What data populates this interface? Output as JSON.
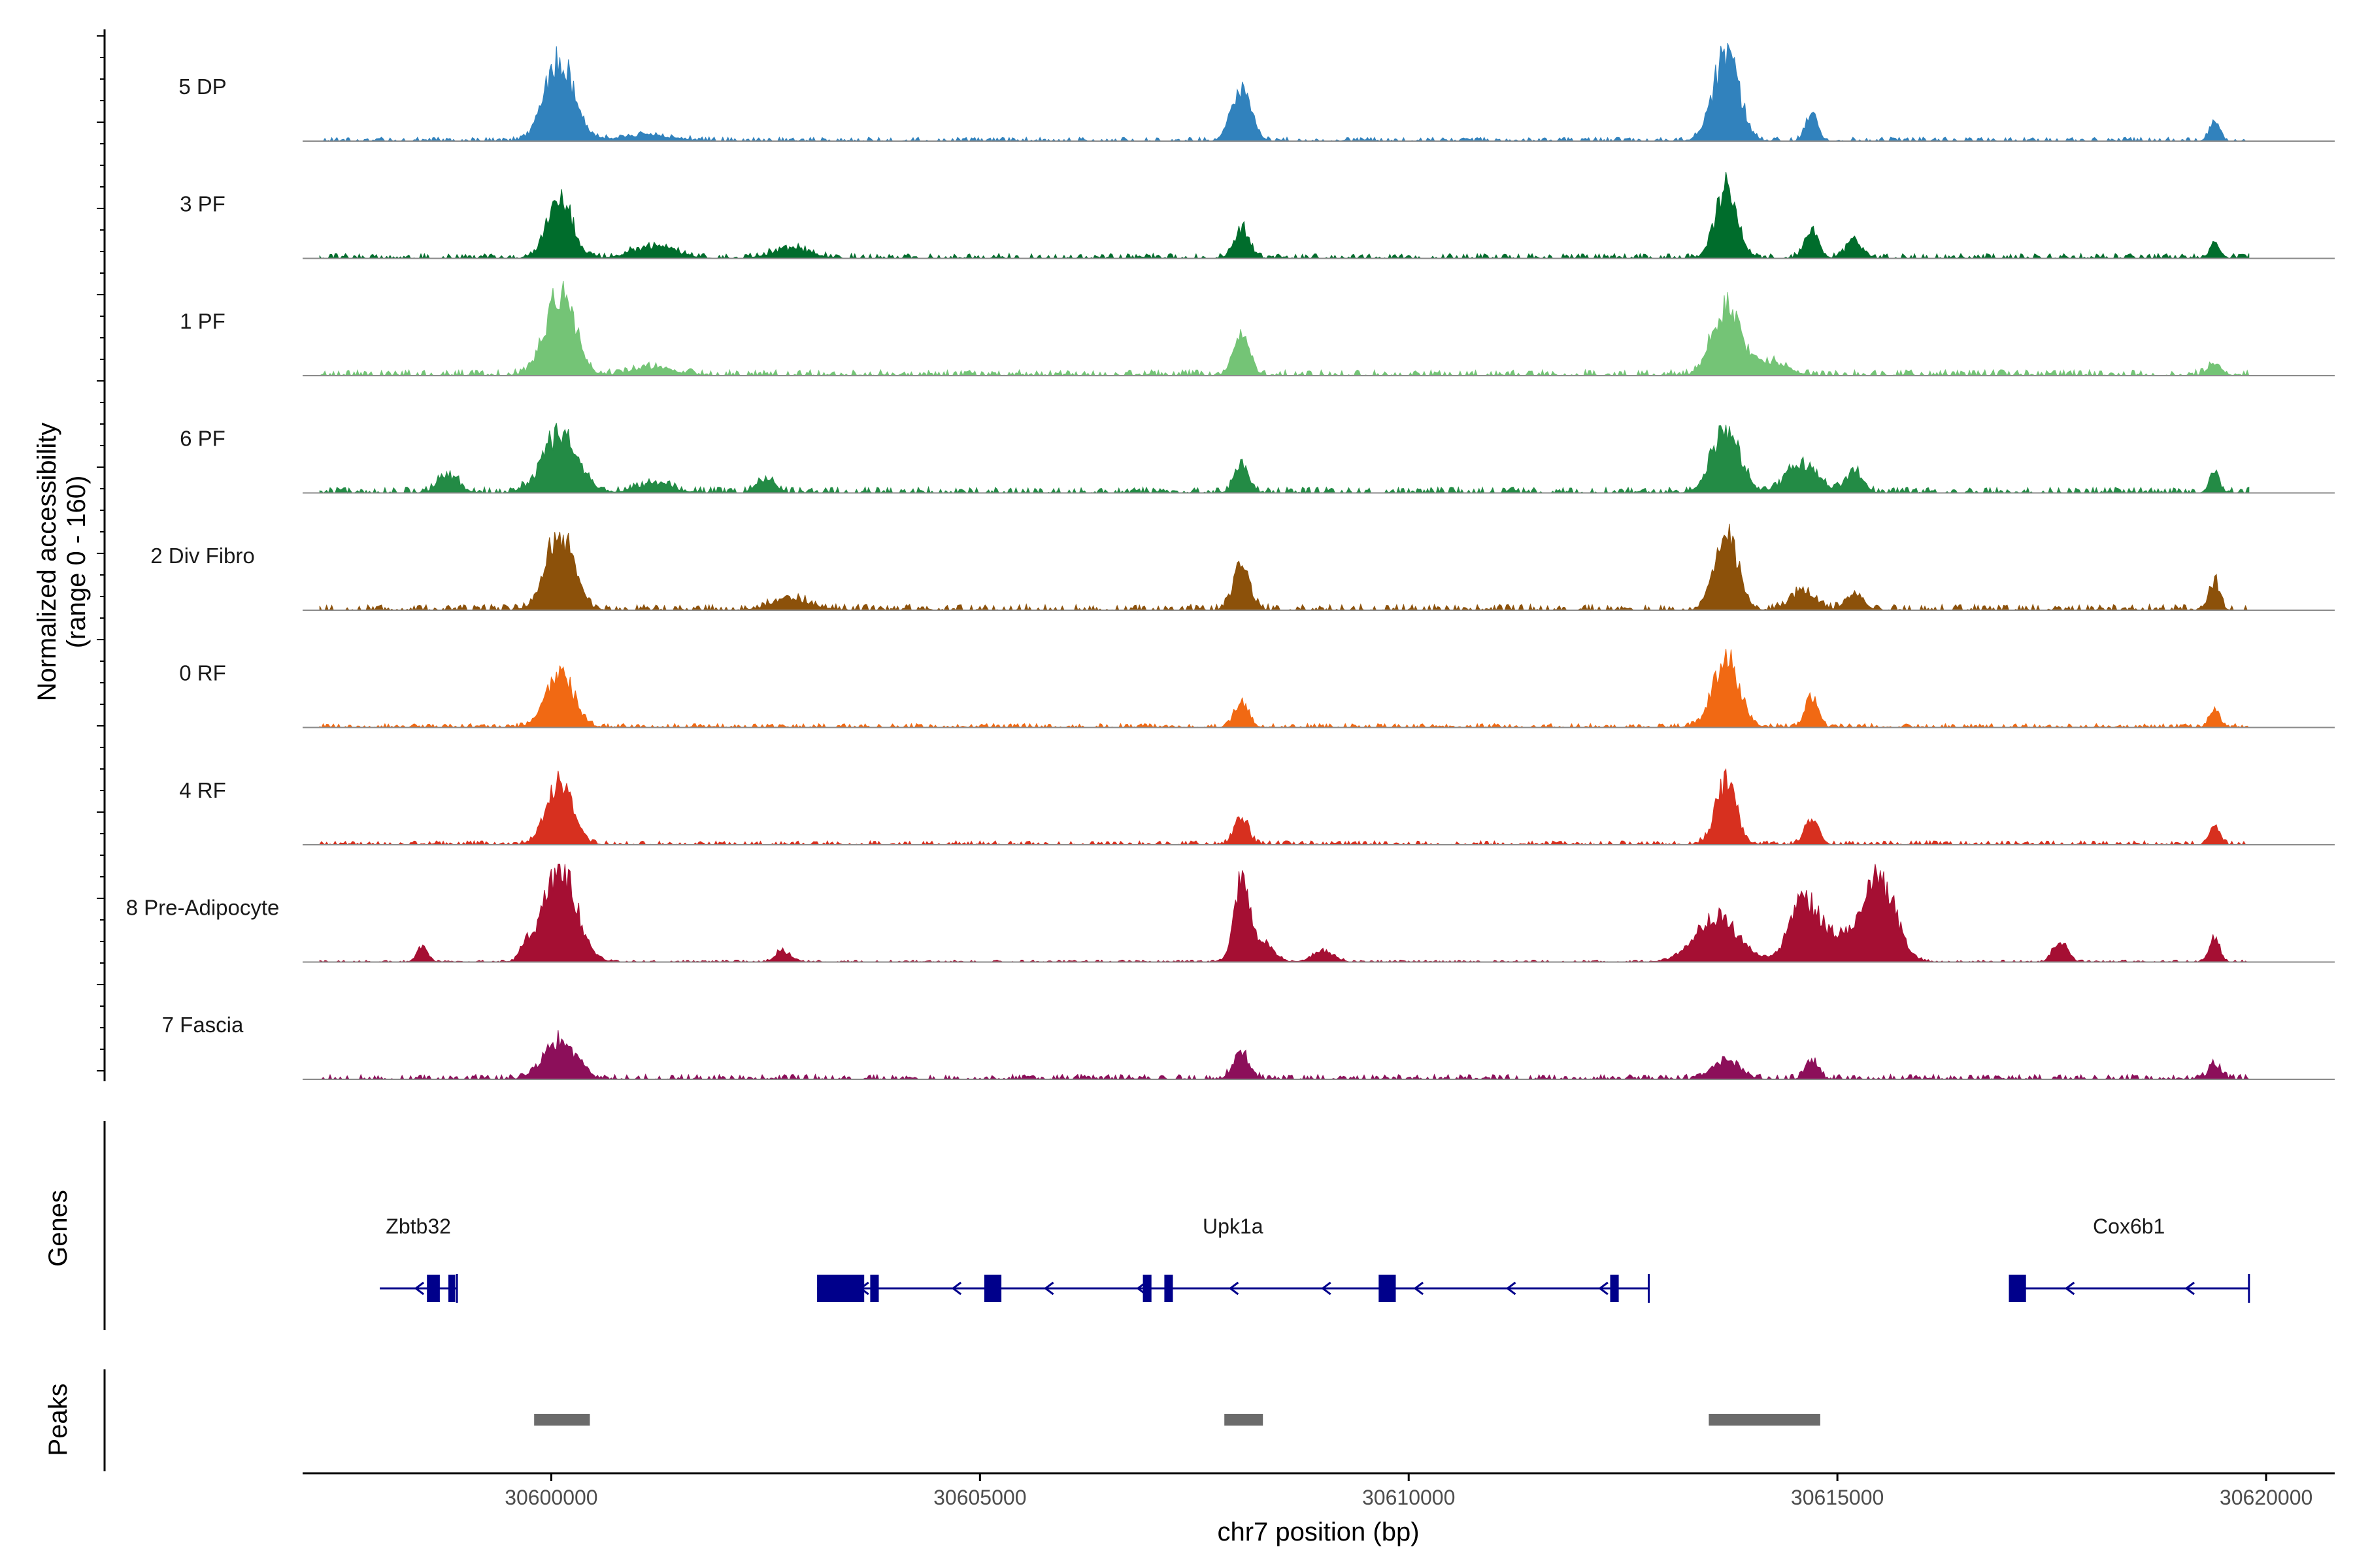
{
  "chart_data": {
    "type": "area",
    "title": "",
    "ylabel_line1": "Normalized accessibility",
    "ylabel_line2": "(range 0 - 160)",
    "ylim": [
      0,
      160
    ],
    "xlabel": "chr7 position (bp)",
    "xlim": [
      30597100,
      30620800
    ],
    "x_ticks": [
      30600000,
      30605000,
      30610000,
      30615000,
      30620000
    ],
    "x_tick_labels": [
      "30600000",
      "30605000",
      "30610000",
      "30615000",
      "30620000"
    ],
    "grid": false,
    "legend": "none",
    "tracks": [
      {
        "name": "5 DP",
        "color": "#3182bd",
        "peaks": [
          [
            30600100,
            0.85,
            170
          ],
          [
            30601100,
            0.06,
            300
          ],
          [
            30608050,
            0.55,
            110
          ],
          [
            30613700,
            0.9,
            150
          ],
          [
            30614700,
            0.28,
            70
          ],
          [
            30619400,
            0.2,
            60
          ]
        ],
        "bg": 0.04
      },
      {
        "name": "3 PF",
        "color": "#006d2c",
        "peaks": [
          [
            30600100,
            0.62,
            140
          ],
          [
            30601200,
            0.12,
            250
          ],
          [
            30602800,
            0.1,
            220
          ],
          [
            30608050,
            0.3,
            90
          ],
          [
            30613700,
            0.75,
            120
          ],
          [
            30614700,
            0.3,
            80
          ],
          [
            30615200,
            0.18,
            90
          ],
          [
            30619400,
            0.15,
            60
          ]
        ],
        "bg": 0.05
      },
      {
        "name": "1 PF",
        "color": "#74c476",
        "peaks": [
          [
            30600100,
            0.85,
            170
          ],
          [
            30601200,
            0.08,
            250
          ],
          [
            30608050,
            0.45,
            90
          ],
          [
            30613700,
            0.72,
            160
          ],
          [
            30614200,
            0.15,
            200
          ],
          [
            30619400,
            0.12,
            80
          ]
        ],
        "bg": 0.06
      },
      {
        "name": "6 PF",
        "color": "#238b45",
        "peaks": [
          [
            30598800,
            0.18,
            120
          ],
          [
            30600100,
            0.6,
            200
          ],
          [
            30601200,
            0.1,
            200
          ],
          [
            30602500,
            0.15,
            100
          ],
          [
            30608050,
            0.32,
            80
          ],
          [
            30613700,
            0.65,
            160
          ],
          [
            30614600,
            0.3,
            180
          ],
          [
            30615200,
            0.2,
            100
          ],
          [
            30619400,
            0.18,
            60
          ]
        ],
        "bg": 0.06
      },
      {
        "name": "2 Div Fibro",
        "color": "#8c510a",
        "peaks": [
          [
            30600100,
            0.8,
            160
          ],
          [
            30602800,
            0.12,
            220
          ],
          [
            30608050,
            0.42,
            100
          ],
          [
            30613700,
            0.8,
            130
          ],
          [
            30614600,
            0.18,
            150
          ],
          [
            30615200,
            0.15,
            100
          ],
          [
            30619400,
            0.3,
            60
          ]
        ],
        "bg": 0.06
      },
      {
        "name": "0 RF",
        "color": "#f16913",
        "peaks": [
          [
            30600100,
            0.55,
            160
          ],
          [
            30608050,
            0.28,
            80
          ],
          [
            30613700,
            0.72,
            150
          ],
          [
            30614700,
            0.35,
            70
          ],
          [
            30619400,
            0.18,
            60
          ]
        ],
        "bg": 0.04
      },
      {
        "name": "4 RF",
        "color": "#d7301f",
        "peaks": [
          [
            30600100,
            0.65,
            150
          ],
          [
            30608050,
            0.3,
            80
          ],
          [
            30613700,
            0.65,
            120
          ],
          [
            30614700,
            0.25,
            80
          ],
          [
            30619400,
            0.2,
            60
          ]
        ],
        "bg": 0.04
      },
      {
        "name": "8 Pre-Adipocyte",
        "color": "#a50f33",
        "peaks": [
          [
            30598500,
            0.15,
            60
          ],
          [
            30599700,
            0.15,
            60
          ],
          [
            30600100,
            1.0,
            190
          ],
          [
            30602700,
            0.12,
            80
          ],
          [
            30608050,
            0.8,
            90
          ],
          [
            30608300,
            0.2,
            120
          ],
          [
            30609000,
            0.12,
            120
          ],
          [
            30613600,
            0.45,
            250
          ],
          [
            30614600,
            0.6,
            160
          ],
          [
            30615000,
            0.25,
            250
          ],
          [
            30615500,
            0.85,
            180
          ],
          [
            30617600,
            0.22,
            80
          ],
          [
            30619400,
            0.25,
            60
          ]
        ],
        "bg": 0.02
      },
      {
        "name": "7 Fascia",
        "color": "#8c0f5a",
        "peaks": [
          [
            30600100,
            0.42,
            180
          ],
          [
            30608050,
            0.28,
            90
          ],
          [
            30613700,
            0.2,
            150
          ],
          [
            30614700,
            0.22,
            70
          ],
          [
            30619400,
            0.15,
            70
          ]
        ],
        "bg": 0.05
      }
    ],
    "genes_panel_title": "Genes",
    "genes": [
      {
        "name": "Zbtb32",
        "start": 30598000,
        "end": 30598900,
        "strand": "-",
        "exons": [
          [
            30598550,
            30598700
          ],
          [
            30598800,
            30598880
          ]
        ]
      },
      {
        "name": "Upk1a",
        "start": 30603100,
        "end": 30612800,
        "strand": "-",
        "exons": [
          [
            30603100,
            30603650
          ],
          [
            30603720,
            30603820
          ],
          [
            30605050,
            30605250
          ],
          [
            30606900,
            30607000
          ],
          [
            30607150,
            30607250
          ],
          [
            30609650,
            30609850
          ],
          [
            30612350,
            30612450
          ]
        ]
      },
      {
        "name": "Cox6b1",
        "start": 30617000,
        "end": 30619800,
        "strand": "-",
        "exons": [
          [
            30617000,
            30617200
          ]
        ]
      }
    ],
    "peaks_panel_title": "Peaks",
    "peak_regions": [
      [
        30599800,
        30600450
      ],
      [
        30607850,
        30608300
      ],
      [
        30613500,
        30614800
      ]
    ]
  }
}
